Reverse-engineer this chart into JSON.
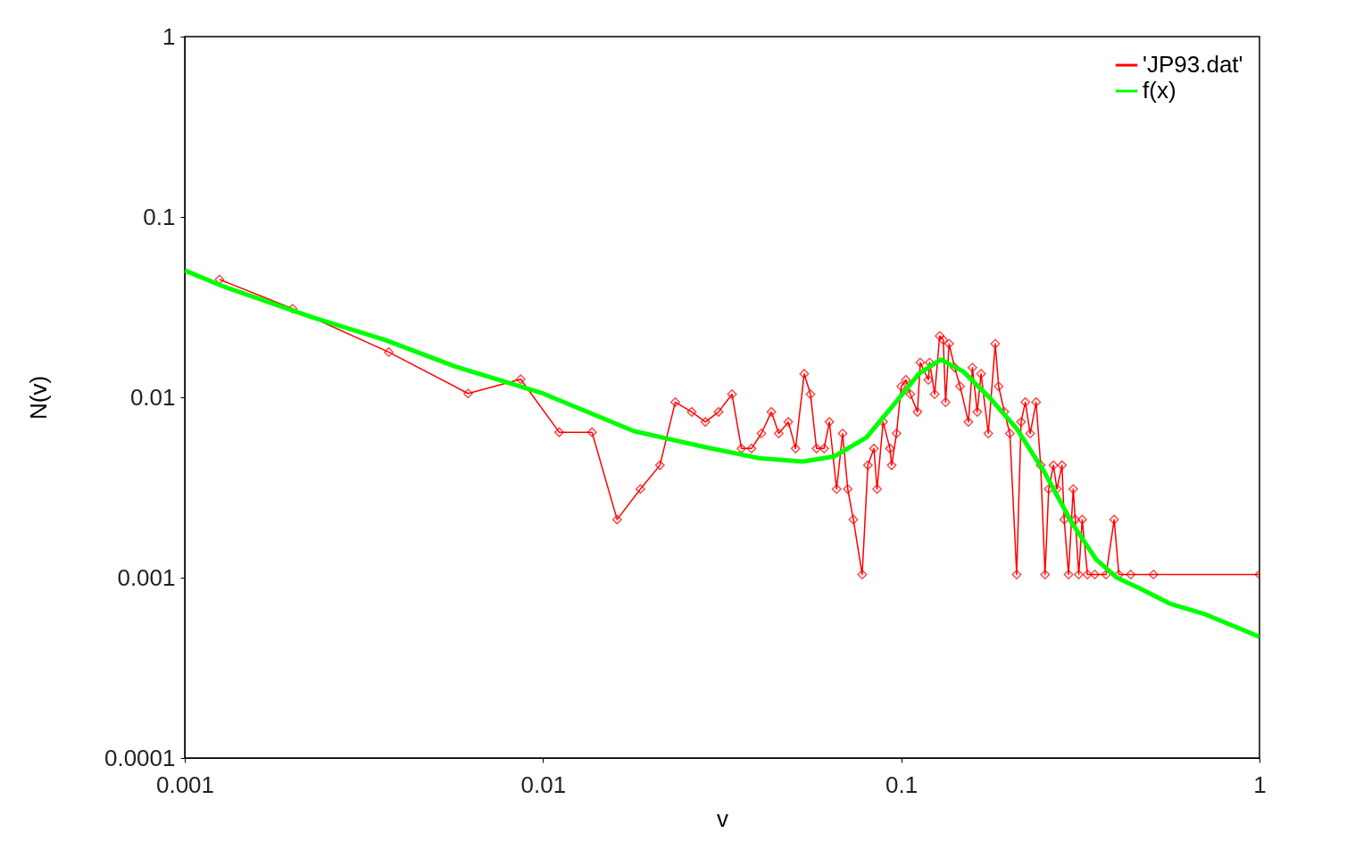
{
  "chart_data": {
    "type": "line",
    "xlabel": "v",
    "ylabel": "N(v)",
    "log": "xy",
    "grid": false,
    "legend": "top right",
    "xlim": [
      0.001,
      1
    ],
    "xticks": [
      0.001,
      0.01,
      0.1,
      1
    ],
    "ylim": [
      0.0001,
      1
    ],
    "yticks": [
      0.0001,
      0.001,
      0.01,
      0.1,
      1
    ],
    "series": [
      {
        "name": "'JP93.dat'",
        "color": "#ff0000",
        "marker": "diamond",
        "line_style": "solid",
        "x": [
          0.00125,
          0.002,
          0.00371,
          0.00618,
          0.00866,
          0.0111,
          0.0137,
          0.0161,
          0.0187,
          0.0212,
          0.0234,
          0.026,
          0.0284,
          0.0309,
          0.0337,
          0.0358,
          0.0382,
          0.0407,
          0.0434,
          0.0455,
          0.0484,
          0.0507,
          0.0536,
          0.0558,
          0.058,
          0.0609,
          0.063,
          0.066,
          0.0686,
          0.0709,
          0.0735,
          0.0778,
          0.0807,
          0.0839,
          0.0856,
          0.089,
          0.093,
          0.094,
          0.097,
          0.1,
          0.103,
          0.106,
          0.111,
          0.113,
          0.119,
          0.12,
          0.124,
          0.128,
          0.131,
          0.133,
          0.136,
          0.141,
          0.146,
          0.154,
          0.158,
          0.163,
          0.167,
          0.175,
          0.183,
          0.187,
          0.194,
          0.201,
          0.21,
          0.216,
          0.222,
          0.229,
          0.238,
          0.245,
          0.252,
          0.258,
          0.266,
          0.272,
          0.281,
          0.285,
          0.293,
          0.302,
          0.306,
          0.313,
          0.32,
          0.331,
          0.347,
          0.373,
          0.393,
          0.405,
          0.437,
          0.506,
          1
        ],
        "values": [
          0.045,
          0.031,
          0.0178,
          0.0105,
          0.0126,
          0.0064,
          0.0064,
          0.0021,
          0.0031,
          0.0042,
          0.0094,
          0.0083,
          0.0073,
          0.0083,
          0.0104,
          0.0052,
          0.0052,
          0.0063,
          0.0083,
          0.0063,
          0.0073,
          0.0052,
          0.0135,
          0.0104,
          0.0052,
          0.0052,
          0.0073,
          0.0031,
          0.0063,
          0.0031,
          0.0021,
          0.00104,
          0.0042,
          0.0052,
          0.0031,
          0.0073,
          0.0052,
          0.0042,
          0.0063,
          0.0115,
          0.0125,
          0.0104,
          0.0083,
          0.0156,
          0.0125,
          0.0156,
          0.0104,
          0.0219,
          0.0208,
          0.0094,
          0.0198,
          0.0146,
          0.0115,
          0.0073,
          0.0146,
          0.0083,
          0.0135,
          0.0063,
          0.0198,
          0.0115,
          0.0083,
          0.0063,
          0.00104,
          0.0073,
          0.0094,
          0.0063,
          0.0094,
          0.0042,
          0.00104,
          0.0031,
          0.0042,
          0.0031,
          0.0042,
          0.0021,
          0.00104,
          0.0031,
          0.0021,
          0.00104,
          0.0021,
          0.00104,
          0.00104,
          0.00104,
          0.0021,
          0.00104,
          0.00104,
          0.00104,
          0.00104
        ]
      },
      {
        "name": "f(x)",
        "color": "#00ff00",
        "marker": "none",
        "line_style": "solid",
        "x": [
          0.001,
          0.00129,
          0.00228,
          0.0036,
          0.0057,
          0.01,
          0.0179,
          0.0283,
          0.04,
          0.053,
          0.065,
          0.08,
          0.094,
          0.112,
          0.129,
          0.149,
          0.177,
          0.21,
          0.25,
          0.3,
          0.35,
          0.4,
          0.47,
          0.56,
          0.7,
          1
        ],
        "values": [
          0.0505,
          0.041,
          0.0277,
          0.0209,
          0.0148,
          0.0105,
          0.0065,
          0.0053,
          0.0046,
          0.0044,
          0.0047,
          0.006,
          0.0088,
          0.0135,
          0.0162,
          0.0139,
          0.0099,
          0.0067,
          0.0039,
          0.002,
          0.00126,
          0.001,
          0.00086,
          0.00072,
          0.00063,
          0.00047
        ]
      }
    ]
  }
}
